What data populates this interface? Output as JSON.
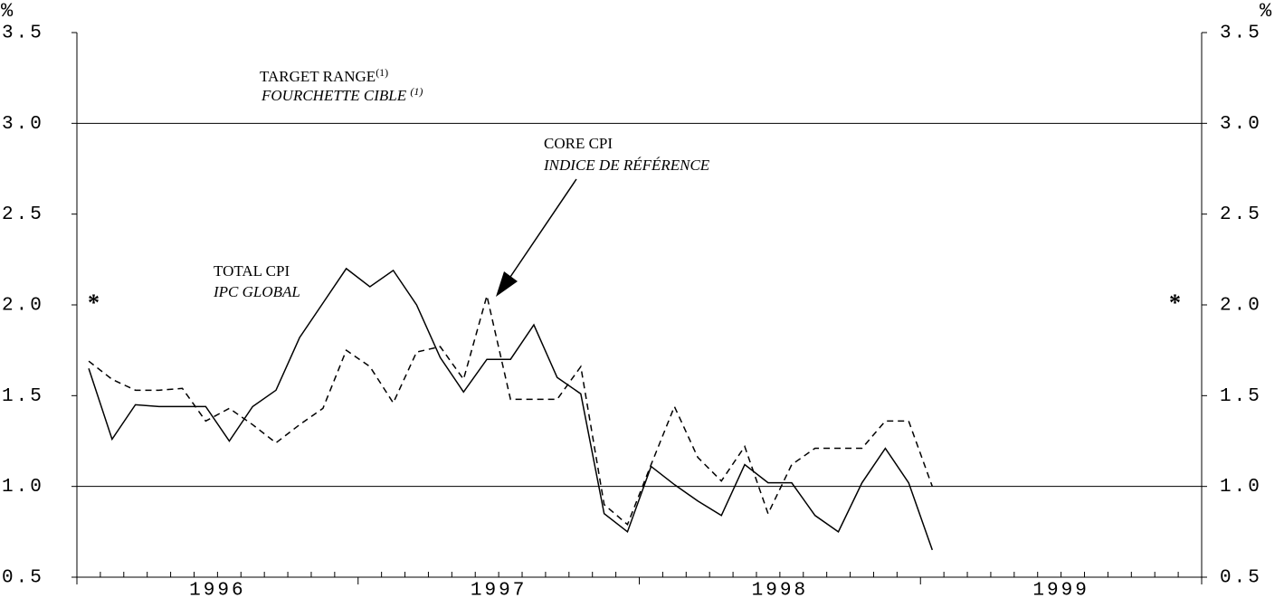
{
  "chart_data": {
    "type": "line",
    "x": [
      1996.042,
      1996.125,
      1996.208,
      1996.292,
      1996.375,
      1996.458,
      1996.542,
      1996.625,
      1996.708,
      1996.792,
      1996.875,
      1996.958,
      1997.042,
      1997.125,
      1997.208,
      1997.292,
      1997.375,
      1997.458,
      1997.542,
      1997.625,
      1997.708,
      1997.792,
      1997.875,
      1997.958,
      1998.042,
      1998.125,
      1998.208,
      1998.292,
      1998.375,
      1998.458,
      1998.542,
      1998.625,
      1998.708,
      1998.792,
      1998.875,
      1998.958,
      1999.042
    ],
    "series": [
      {
        "name": "TOTAL CPI",
        "name_fr": "IPC GLOBAL",
        "color": "#000",
        "dash": false,
        "values": [
          1.65,
          1.26,
          1.45,
          1.44,
          1.44,
          1.44,
          1.25,
          1.44,
          1.53,
          1.82,
          2.01,
          2.2,
          2.1,
          2.19,
          2.0,
          1.71,
          1.52,
          1.7,
          1.7,
          1.89,
          1.6,
          1.51,
          0.85,
          0.75,
          1.11,
          1.01,
          0.92,
          0.84,
          1.12,
          1.02,
          1.02,
          0.84,
          0.75,
          1.02,
          1.21,
          1.02,
          0.65
        ]
      },
      {
        "name": "CORE CPI",
        "name_fr": "INDICE DE RÉFÉRENCE",
        "color": "#000",
        "dash": true,
        "values": [
          1.69,
          1.59,
          1.53,
          1.53,
          1.54,
          1.36,
          1.43,
          1.34,
          1.24,
          1.34,
          1.43,
          1.75,
          1.66,
          1.46,
          1.74,
          1.77,
          1.59,
          2.05,
          1.48,
          1.48,
          1.48,
          1.66,
          0.9,
          0.79,
          1.12,
          1.44,
          1.16,
          1.03,
          1.22,
          0.85,
          1.12,
          1.21,
          1.21,
          1.21,
          1.36,
          1.36,
          1.0
        ]
      }
    ],
    "target_range": {
      "label": "TARGET RANGE",
      "label_sup": "(1)",
      "label_fr": "FOURCHETTE CIBLE ",
      "label_fr_sup": "(1)",
      "values": [
        1.0,
        3.0
      ]
    },
    "y_unit": "%",
    "y2_unit": "%",
    "left_marker": "*",
    "right_marker": "*",
    "xlim": [
      1996,
      2000
    ],
    "xticks": [
      {
        "value": 1996.5,
        "label": "1996"
      },
      {
        "value": 1997.5,
        "label": "1997"
      },
      {
        "value": 1998.5,
        "label": "1998"
      },
      {
        "value": 1999.5,
        "label": "1999"
      }
    ],
    "ylim": [
      0.5,
      3.5
    ],
    "yticks": [
      0.5,
      {
        "value": 1,
        "label": "1.0"
      },
      1.5,
      {
        "value": 2,
        "label": "2.0"
      },
      2.5,
      {
        "value": 3,
        "label": "3.0"
      },
      3.5
    ],
    "y2lim": [
      0.5,
      3.5
    ],
    "y2ticks": [
      0.5,
      {
        "value": 1,
        "label": "1.0"
      },
      1.5,
      {
        "value": 2,
        "label": "2.0"
      },
      2.5,
      {
        "value": 3,
        "label": "3.0"
      },
      3.5
    ]
  }
}
